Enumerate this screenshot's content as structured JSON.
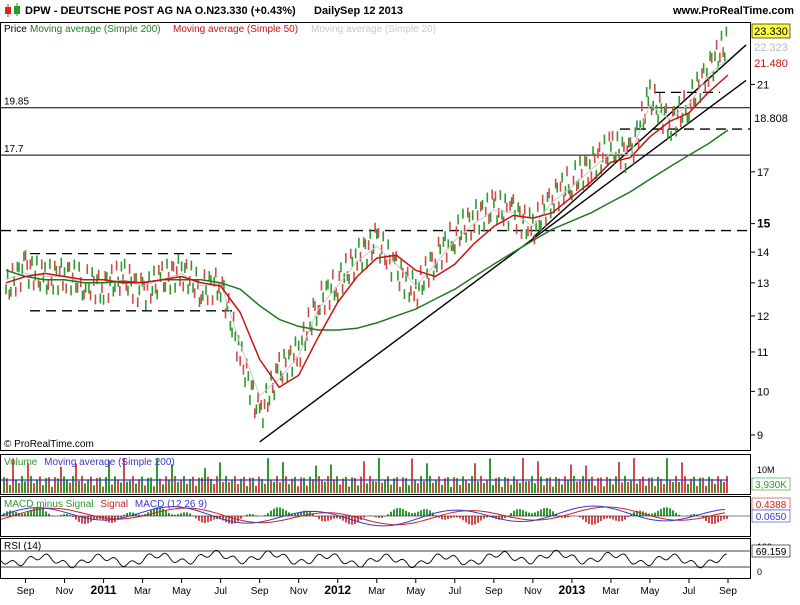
{
  "header": {
    "title": "DPW - DEUTSCHE POST AG NA O.N.",
    "price": "23.330 (+0.43%)",
    "period": "Daily",
    "date": "Sep 12 2013",
    "site": "www.ProRealTime.com",
    "icon": "candlestick-icon"
  },
  "legend": {
    "price": "Price",
    "ma200": "Moving average (Simple 200)",
    "ma50": "Moving average (Simple 50)",
    "ma20": "Moving average (Simple 20)"
  },
  "copyright": "© ProRealTime.com",
  "colors": {
    "price_up": "#2e9a2e",
    "price_down": "#d24a4a",
    "ma200": "#1f7a1f",
    "ma50": "#cc1111",
    "ma20": "#c8c8c8",
    "macd": "#3a3acc",
    "signal": "#cc2222"
  },
  "chart_data": [
    {
      "type": "line",
      "panel": "price",
      "scale": "log",
      "x_tick_labels": [
        "Sep",
        "Nov",
        "2011",
        "Mar",
        "May",
        "Jul",
        "Sep",
        "Nov",
        "2012",
        "Mar",
        "May",
        "Jul",
        "Sep",
        "Nov",
        "2013",
        "Mar",
        "May",
        "Jul",
        "Sep"
      ],
      "y_ticks": [
        9,
        10,
        11,
        12,
        13,
        14,
        15,
        17,
        21
      ],
      "y_tick_labels": [
        "9",
        "10",
        "11",
        "12",
        "13",
        "14",
        "15",
        "17",
        "21"
      ],
      "ylim": [
        8.7,
        24.3
      ],
      "x": [
        "2010-08",
        "2010-09",
        "2010-10",
        "2010-11",
        "2010-12",
        "2011-01",
        "2011-02",
        "2011-03",
        "2011-04",
        "2011-05",
        "2011-06",
        "2011-07",
        "2011-08",
        "2011-09",
        "2011-10",
        "2011-11",
        "2011-12",
        "2012-01",
        "2012-02",
        "2012-03",
        "2012-04",
        "2012-05",
        "2012-06",
        "2012-07",
        "2012-08",
        "2012-09",
        "2012-10",
        "2012-11",
        "2012-12",
        "2013-01",
        "2013-02",
        "2013-03",
        "2013-04",
        "2013-05",
        "2013-06",
        "2013-07",
        "2013-08",
        "2013-09"
      ],
      "series": [
        {
          "name": "Price",
          "values": [
            12.8,
            13.5,
            13.1,
            13.3,
            13.0,
            12.9,
            13.2,
            12.7,
            13.1,
            13.4,
            12.8,
            13.0,
            10.9,
            9.4,
            10.5,
            11.0,
            12.4,
            13.0,
            13.8,
            14.4,
            13.4,
            12.7,
            13.8,
            14.6,
            15.2,
            15.6,
            15.4,
            14.8,
            16.0,
            16.6,
            17.3,
            18.0,
            17.7,
            20.4,
            19.1,
            20.0,
            21.8,
            23.33
          ]
        },
        {
          "name": "Moving average (Simple 200)",
          "values": [
            13.4,
            13.2,
            13.1,
            13.1,
            13.0,
            13.0,
            13.05,
            13.0,
            13.1,
            13.1,
            13.1,
            13.0,
            12.8,
            12.3,
            11.9,
            11.7,
            11.6,
            11.6,
            11.65,
            11.8,
            12.0,
            12.2,
            12.5,
            12.8,
            13.2,
            13.6,
            14.0,
            14.4,
            14.8,
            15.1,
            15.4,
            15.8,
            16.2,
            16.7,
            17.2,
            17.7,
            18.2,
            18.808
          ]
        },
        {
          "name": "Moving average (Simple 50)",
          "values": [
            13.0,
            13.2,
            13.3,
            13.2,
            13.1,
            13.1,
            13.0,
            13.0,
            13.1,
            13.2,
            13.0,
            12.9,
            12.1,
            10.8,
            10.1,
            10.4,
            11.4,
            12.4,
            13.2,
            13.8,
            13.9,
            13.4,
            13.2,
            13.6,
            14.3,
            14.9,
            15.3,
            15.2,
            15.4,
            16.0,
            16.6,
            17.4,
            17.6,
            18.5,
            19.2,
            19.6,
            20.6,
            21.48
          ]
        },
        {
          "name": "Moving average (Simple 20)",
          "values": [
            13.1,
            13.3,
            13.2,
            13.2,
            13.0,
            13.0,
            13.1,
            12.9,
            13.1,
            13.3,
            12.9,
            13.0,
            11.2,
            9.9,
            10.3,
            10.9,
            12.2,
            12.9,
            13.7,
            14.2,
            13.6,
            12.9,
            13.6,
            14.4,
            15.0,
            15.5,
            15.4,
            14.9,
            15.8,
            16.4,
            17.1,
            17.8,
            17.7,
            20.0,
            19.3,
            20.0,
            21.5,
            22.323
          ]
        }
      ],
      "y_value_labels": [
        "23.330",
        "22.323",
        "21.480",
        "18.808"
      ],
      "horizontal_levels": [
        {
          "label": "19.85",
          "value": 19.85
        },
        {
          "label": "17.7",
          "value": 17.7
        }
      ]
    },
    {
      "type": "bar",
      "panel": "volume",
      "legend": [
        "Volume",
        "Moving average (Simple 200)"
      ],
      "y_tick_labels": [
        "10M"
      ],
      "y_value_labels": [
        "3,930K"
      ],
      "ylim": [
        0,
        12000000
      ]
    },
    {
      "type": "line",
      "panel": "macd",
      "legend": [
        "MACD minus Signal",
        "Signal",
        "MACD (12 26 9)"
      ],
      "y_value_labels": [
        "0.4388",
        "0.0650"
      ]
    },
    {
      "type": "line",
      "panel": "rsi",
      "legend": [
        "RSI (14)"
      ],
      "y_tick_labels": [
        "100",
        "0"
      ],
      "y_value_labels": [
        "69.159"
      ],
      "ylim": [
        0,
        100
      ]
    }
  ]
}
